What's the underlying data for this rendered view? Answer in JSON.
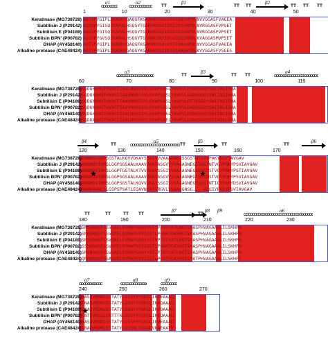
{
  "blocks": [
    {
      "start": 1,
      "ticks": [
        "1",
        "10",
        "20",
        "30",
        "40",
        "50"
      ],
      "ss": {
        "alpha": [
          "α1",
          "α2"
        ],
        "beta": [
          "β1",
          "β2"
        ],
        "tt": [
          "TT",
          "TT",
          "TT",
          "TT",
          "TT",
          "TT"
        ]
      },
      "names": [
        "Keratinase (MG738728)",
        "Subtilisin J (P29142)",
        "Subtilisin E (P04189)",
        "Subtilisin BPN' (P00782)",
        "DHAP (AY458140)",
        "Alkaline protease (CAE48424)"
      ],
      "seqs": [
        "AQTVPYGIPLIKADKVQAQGFKGANVKVAVLDTGIQASHPDLNVVGGASFVAGEA",
        "AQSVPYGISQIKAPALHSQGYTGSNVKVAVIDSGIDSSHPDLNVRGGASFVPSET",
        "AQSVPYGISQIKAPALHSQGYTGSNVKVAVIDSGIDSSHPDLNVRGGASFVPSET",
        "AQSVPYGVSQIKAPALHSQGYTGSNVKVAVIDSGIDSSHPDLKVAGGASMVPSET",
        "AQTVPYGIPLIKADKVQAQGFKGANVKVAVLDTGIQASHPDLNVVGGASFVAGEA",
        "AQTVPYGIPLIKADKVQAQGYKGANVKVGIIDTGIAASHTDLKVVGGASFVSGES"
      ]
    },
    {
      "start": 60,
      "ticks": [
        "60",
        "70",
        "80",
        "90",
        "100",
        "110"
      ],
      "ss": {
        "alpha": [
          "α3",
          "α4"
        ],
        "beta": [
          "β3"
        ],
        "tt": [
          "TT",
          "TT",
          "TT"
        ]
      },
      "names": [
        "Keratinase (MG738728)",
        "Subtilisin J (P29142)",
        "Subtilisin E (P04189)",
        "Subtilisin BPN' (P00782)",
        "DHAP (AY458140)",
        "Alkaline protease (CAE48424)"
      ],
      "seqs": [
        "GNQDGHGHGTHVAGTIAALNNSIGVLGVAPSASLYAVKVLDSNGSGQYSWIINGIEWA",
        "GSQDGNGHGTHVAGTIAAVNNSIGVLGVAPSASLYAVKVLGADGSGQYSWIINGIEWA",
        "GSQDGNGHGTHVAGTIAAVNNSIGVLGVAPSASLYAVKVLDSTGSGQYSWIINGIEWA",
        "GSQDGNGHGTHVAGTIAAVNNSIGVLGVAPSASLYAVKVLGADGSGQYSWIINGIEWA",
        "GNQDGHGHGTHVAGTIAALNNSIGVLGVAPSASLYAVKVLDSNGSGQYSWIINGIEWA",
        "GSQDGNGHGTHVAGTIAALNNSVGVLGVAPSAELYAVKVLGANGSGSVSSIAQGLEWA"
      ]
    },
    {
      "start": 120,
      "ticks": [
        "120",
        "130",
        "140",
        "150",
        "160",
        "170"
      ],
      "ss": {
        "alpha": [
          "α5"
        ],
        "beta": [
          "β4",
          "β5",
          "β6"
        ],
        "tt": [
          "TT",
          "TT",
          "TT",
          "TT"
        ]
      },
      "names": [
        "Keratinase (MG738728)",
        "Subtilisin J (P29142)",
        "Subtilisin E (P04189)",
        "Subtilisin BPN' (P00782)",
        "DHAP (AY458140)",
        "Alkaline protease (CAE48424)"
      ],
      "seqs": [
        "VIMNMSLGGPSGSTALKQVVDKAYSSGIVVVAAAGNEGSSGSTNTIGYPAKYDSVIAVGAV",
        "IANNMDVINMSLGGPSGSAALKAAVDKAVASGVVVVAAAGNEGSSGSTNTVGYPGKYPSVIAVGAV",
        "IANNMDVINMSLGGPTGSTALKTVVDKAVSSGIVVAAAAGNEGSSGSTSTVGYPAKYPSTIAVGAV",
        "IANNMDVINMSLGGPSGSAALKAAVDKAVASGVVVVAAAGNEGTSGSSSTVGYPGKYPSVIAVGAV",
        "VANNMDVINMSLGGPSGSTALKQVVDKAYSSGIVVVAAAGNEGSSGSTNTIGYPAKYDSVIAVGAV",
        "VNNMHVANLSLGSPSPSATLEQAVNSATSRGVLVVAASGNSG....ADGSYPGEYPSVIAVGAV"
      ]
    },
    {
      "start": 180,
      "ticks": [
        "180",
        "190",
        "200",
        "210",
        "220",
        "230"
      ],
      "ss": {
        "alpha": [
          "α6"
        ],
        "beta": [
          "β7",
          "β8",
          "β9"
        ],
        "tt": [
          "TT",
          "TT",
          "TT",
          "TT",
          "TT"
        ]
      },
      "names": [
        "Keratinase (MG738728)",
        "Subtilisin J (P29142)",
        "Subtilisin E (P04189)",
        "Subtilisin BPN' (P00782)",
        "DHAP (AY458140)",
        "Alkaline protease (CAE48424)"
      ],
      "seqs": [
        "DSNSNRASFSSVGAELEVMAPGAGVYSTYPTNTYATLNGTSMASPHVAGAAALILSKHPN",
        "DSNNQRASFSSVGPELDVMAPGVSIQSTLPGNKYGAYNGTSMASPHVAGAAALILSKHPN",
        "DSNSQRASFSSVGAELEVMAPGAGVYSTYPTSTYATLNGTSMASPHVAGAAALILSKHPN",
        "DSSNQRASFSSVGPELDVMAPGVSIQSTLPGNKYGAYNGTSMASPHVAGAAALILSKHPN",
        "DSNSNRASFSSVGAELEVMAPGAGVYSTYPTNTYATLNGTSMASPHVAGAAALILSKHPN",
        "DQNNNRASFSSAGSELDVMAPGVSIQSTLPGGTYGAYNGTSMATPHVAGAAALILSKHPT"
      ]
    },
    {
      "start": 240,
      "ticks": [
        "240",
        "250",
        "260",
        "270"
      ],
      "ss": {
        "alpha": [
          "α7",
          "α8",
          "α9"
        ],
        "beta": [],
        "tt": []
      },
      "names": [
        "Keratinase (MG738728)",
        "Subtilisin J (P29142)",
        "Subtilisin E (P04189)",
        "Subtilisin BPN' (P00782)",
        "DHAP (AY458140)",
        "Alkaline protease (CAE48424)"
      ],
      "seqs": [
        "LSASQVRNRLSSTATYLGSSFYYGKGLINVEAAAQ",
        "WTNAQVRDRLESTATYLGNSFYYGKGLINVQAAAQ",
        "WTNAQVRDRLESTATYLGNSFYYGKGLINVQAAAQ",
        "WTNTQVRSSLENTTTKLGDSFYYGKGLINVQAAAQ",
        "LSASQVRNRLSSTATYLGSSFYYGKGLINVEAAAQ",
        "WTNAQVRDRLESTATYLGSSNLYGSGLVNAEAATR"
      ]
    }
  ],
  "markers": {
    "star_glyph": "★"
  },
  "colors": {
    "conserved_bg": "#e0211f",
    "similar_fg": "#e0211f",
    "frame": "#4a5bd0"
  }
}
